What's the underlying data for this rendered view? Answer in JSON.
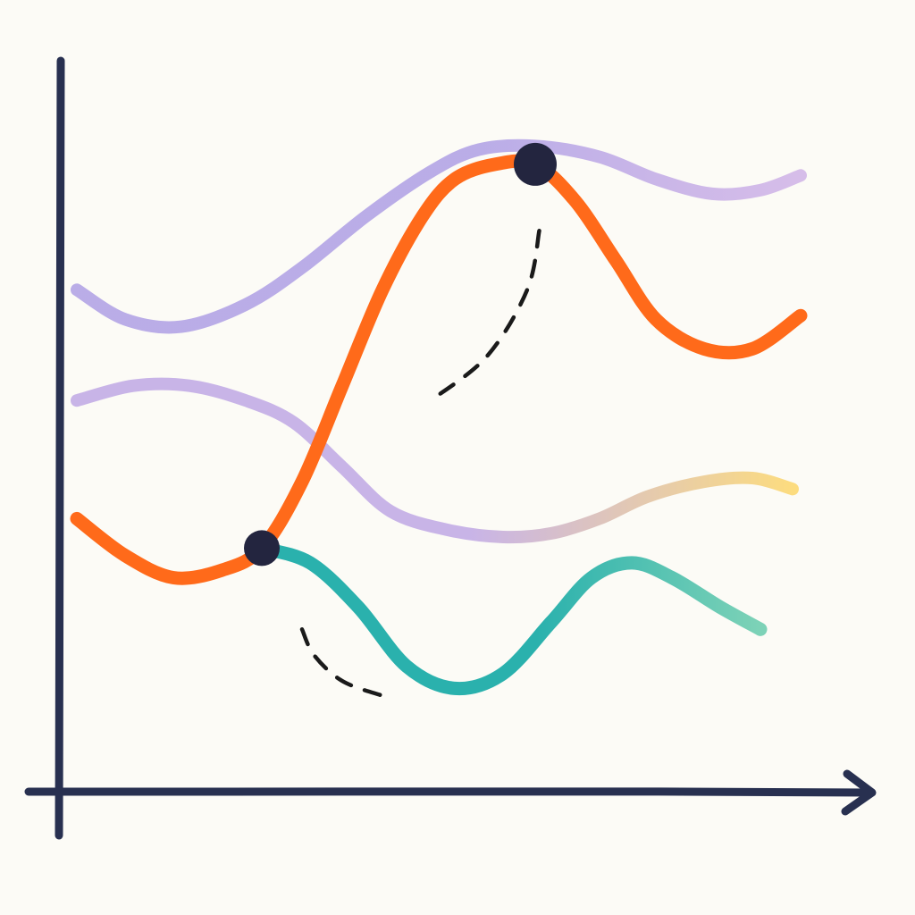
{
  "chart_data": {
    "type": "line",
    "title": "",
    "xlabel": "",
    "ylabel": "",
    "xlim": [
      0,
      100
    ],
    "ylim": [
      0,
      100
    ],
    "grid": false,
    "legend": "none",
    "colors": {
      "axis": "#283050",
      "marker": "#23253f",
      "annotation": "#1a1a1a",
      "purple": "#b4a6e6",
      "lavender": "#c4aee6",
      "orange": "#ff6a1a",
      "teal": "#2ab1ad",
      "teal_light": "#7dd2b7",
      "yellow": "#fcd975",
      "lilac_light": "#d3b8e8"
    },
    "series": [
      {
        "id": "upper-purple",
        "color": "#b4a6e6",
        "color_end": "#d3b8e8",
        "points": [
          [
            2,
            68
          ],
          [
            8,
            64
          ],
          [
            15,
            63
          ],
          [
            23,
            66
          ],
          [
            30,
            71
          ],
          [
            38,
            78
          ],
          [
            46,
            84
          ],
          [
            52,
            87
          ],
          [
            59,
            87.5
          ],
          [
            67,
            86
          ],
          [
            74,
            83
          ],
          [
            81,
            81
          ],
          [
            87,
            81.5
          ],
          [
            92,
            83.5
          ]
        ]
      },
      {
        "id": "lower-purple",
        "color": "#c4aee6",
        "color_end": "#fcd975",
        "points": [
          [
            2,
            53
          ],
          [
            9,
            55
          ],
          [
            16,
            55
          ],
          [
            23,
            53
          ],
          [
            29,
            50
          ],
          [
            35,
            44
          ],
          [
            41,
            38
          ],
          [
            48,
            35.5
          ],
          [
            55,
            34.5
          ],
          [
            61,
            35
          ],
          [
            67,
            37
          ],
          [
            73,
            40
          ],
          [
            80,
            42
          ],
          [
            86,
            42.5
          ],
          [
            91,
            41
          ]
        ]
      },
      {
        "id": "orange",
        "color": "#ff6a1a",
        "points": [
          [
            2,
            37
          ],
          [
            8,
            32
          ],
          [
            14,
            29
          ],
          [
            20,
            30
          ],
          [
            25,
            33
          ],
          [
            30,
            42
          ],
          [
            35,
            55
          ],
          [
            40,
            68
          ],
          [
            45,
            78
          ],
          [
            49,
            83
          ],
          [
            54,
            85
          ],
          [
            59,
            85
          ],
          [
            64,
            80
          ],
          [
            69,
            72
          ],
          [
            74,
            64
          ],
          [
            80,
            60
          ],
          [
            86,
            60
          ],
          [
            92,
            64.5
          ]
        ]
      },
      {
        "id": "teal",
        "color": "#2ab1ad",
        "color_end": "#7dd2b7",
        "points": [
          [
            25,
            33
          ],
          [
            31,
            31
          ],
          [
            37,
            25
          ],
          [
            43,
            17
          ],
          [
            49,
            14
          ],
          [
            55,
            16
          ],
          [
            61,
            23
          ],
          [
            66,
            29
          ],
          [
            71,
            31
          ],
          [
            76,
            29
          ],
          [
            82,
            25
          ],
          [
            87,
            22
          ]
        ]
      }
    ],
    "markers": [
      {
        "series": "orange",
        "x": 25,
        "y": 33
      },
      {
        "series": "orange",
        "x": 59,
        "y": 85
      }
    ],
    "annotations": [
      {
        "type": "dashed-curve",
        "near": "upper-marker",
        "points": [
          [
            59.5,
            76
          ],
          [
            58,
            68
          ],
          [
            53,
            59
          ],
          [
            46,
            53
          ]
        ]
      },
      {
        "type": "dashed-curve",
        "near": "lower-marker",
        "points": [
          [
            30,
            22
          ],
          [
            31.5,
            18.5
          ],
          [
            35,
            15
          ],
          [
            40,
            13
          ]
        ]
      }
    ]
  }
}
